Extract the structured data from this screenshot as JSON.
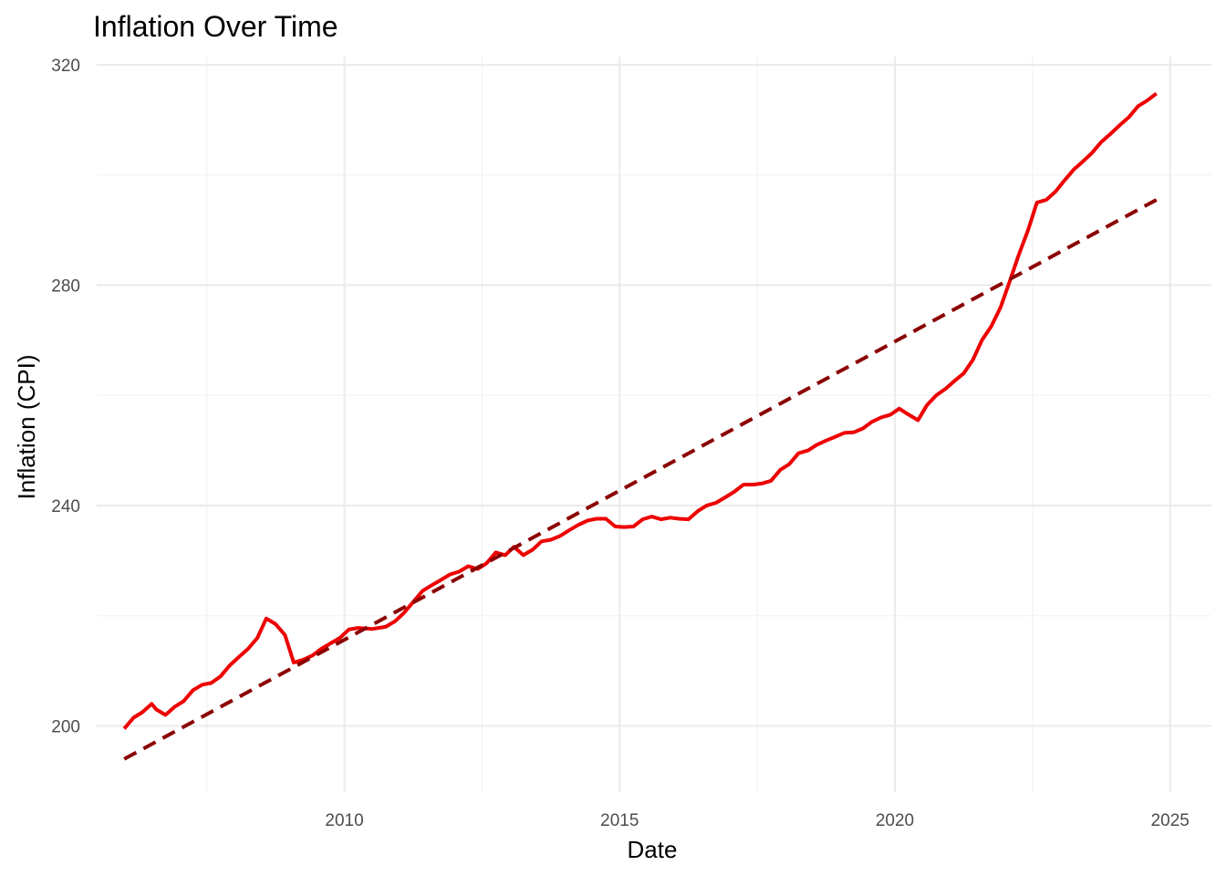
{
  "chart_data": {
    "type": "line",
    "title": "Inflation Over Time",
    "xlabel": "Date",
    "ylabel": "Inflation (CPI)",
    "x_ticks": [
      "2010",
      "2015",
      "2020",
      "2025"
    ],
    "y_ticks": [
      "200",
      "240",
      "280",
      "320"
    ],
    "xlim": [
      2005.5,
      2025.75
    ],
    "ylim": [
      188,
      321.5
    ],
    "grid": true,
    "legend": "none",
    "colors": {
      "series": "#ee0000",
      "trend": "#8b0000"
    },
    "series": [
      {
        "style": "solid",
        "x": [
          2006.0,
          2006.17,
          2006.33,
          2006.5,
          2006.58,
          2006.75,
          2006.92,
          2007.08,
          2007.25,
          2007.42,
          2007.58,
          2007.75,
          2007.92,
          2008.08,
          2008.25,
          2008.42,
          2008.58,
          2008.75,
          2008.92,
          2009.08,
          2009.25,
          2009.42,
          2009.58,
          2009.75,
          2009.92,
          2010.08,
          2010.25,
          2010.5,
          2010.75,
          2010.92,
          2011.08,
          2011.25,
          2011.42,
          2011.58,
          2011.75,
          2011.92,
          2012.08,
          2012.25,
          2012.42,
          2012.58,
          2012.75,
          2012.92,
          2013.08,
          2013.25,
          2013.42,
          2013.58,
          2013.75,
          2013.92,
          2014.08,
          2014.25,
          2014.42,
          2014.58,
          2014.75,
          2014.92,
          2015.08,
          2015.25,
          2015.42,
          2015.58,
          2015.75,
          2015.92,
          2016.08,
          2016.25,
          2016.42,
          2016.58,
          2016.75,
          2016.92,
          2017.08,
          2017.25,
          2017.42,
          2017.58,
          2017.75,
          2017.92,
          2018.08,
          2018.25,
          2018.42,
          2018.58,
          2018.75,
          2018.92,
          2019.08,
          2019.25,
          2019.42,
          2019.58,
          2019.75,
          2019.92,
          2020.08,
          2020.25,
          2020.42,
          2020.58,
          2020.75,
          2020.92,
          2021.08,
          2021.25,
          2021.42,
          2021.58,
          2021.75,
          2021.92,
          2022.08,
          2022.25,
          2022.42,
          2022.58,
          2022.75,
          2022.92,
          2023.08,
          2023.25,
          2023.42,
          2023.58,
          2023.75,
          2023.92,
          2024.08,
          2024.25,
          2024.42,
          2024.58,
          2024.75
        ],
        "values": [
          199.5,
          201.5,
          202.5,
          204.0,
          203.0,
          202.0,
          203.5,
          204.5,
          206.5,
          207.5,
          207.8,
          209.0,
          211.0,
          212.5,
          214.0,
          216.0,
          219.5,
          218.5,
          216.5,
          211.5,
          212.0,
          212.8,
          214.0,
          215.0,
          216.0,
          217.5,
          217.8,
          217.6,
          218.0,
          219.0,
          220.5,
          222.5,
          224.5,
          225.5,
          226.5,
          227.5,
          228.0,
          229.0,
          228.5,
          229.5,
          231.5,
          231.0,
          232.5,
          231.0,
          232.0,
          233.5,
          233.8,
          234.5,
          235.5,
          236.5,
          237.3,
          237.6,
          237.6,
          236.2,
          236.1,
          236.2,
          237.5,
          238.0,
          237.5,
          237.8,
          237.6,
          237.5,
          239.0,
          240.0,
          240.5,
          241.5,
          242.5,
          243.8,
          243.8,
          244.0,
          244.5,
          246.5,
          247.5,
          249.5,
          250.0,
          251.0,
          251.8,
          252.5,
          253.2,
          253.3,
          254.0,
          255.2,
          256.0,
          256.5,
          257.6,
          256.5,
          255.5,
          258.2,
          260.0,
          261.2,
          262.6,
          264.0,
          266.5,
          270.0,
          272.5,
          276.0,
          280.5,
          285.5,
          290.0,
          295.0,
          295.5,
          297.0,
          299.0,
          301.0,
          302.5,
          304.0,
          306.0,
          307.5,
          309.0,
          310.5,
          312.5,
          313.5,
          314.8
        ]
      },
      {
        "style": "dashed",
        "x": [
          2006.0,
          2024.75
        ],
        "values": [
          194.0,
          295.5
        ]
      }
    ]
  }
}
